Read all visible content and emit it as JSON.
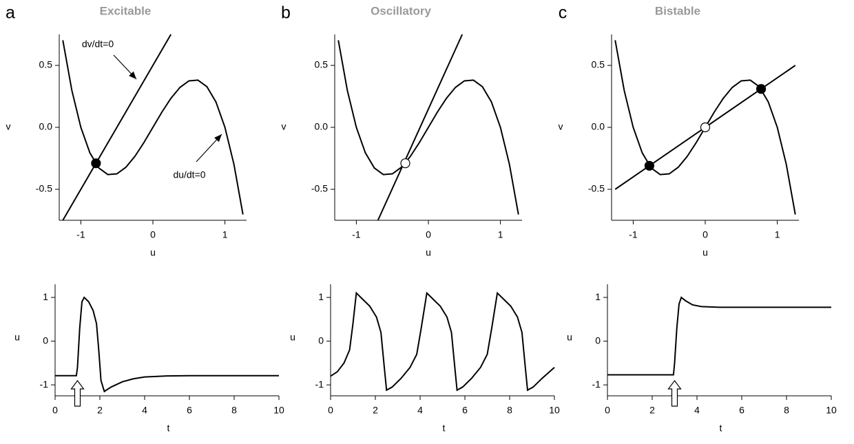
{
  "chart_data": [
    {
      "type": "line",
      "label": "a",
      "title": "Excitable",
      "xlabel": "u",
      "ylabel": "v",
      "xlim": [
        -1.3,
        1.3
      ],
      "ylim": [
        -0.75,
        0.75
      ],
      "xticks": [
        -1,
        0,
        1
      ],
      "yticks": [
        -0.5,
        {
          "value": 0,
          "label": "0.0"
        },
        0.5
      ],
      "series": [
        {
          "color": "#000",
          "x": [
            -1.25,
            -1.125,
            -1,
            -0.875,
            -0.75,
            -0.625,
            -0.5,
            -0.375,
            -0.25,
            -0.125,
            0,
            0.125,
            0.25,
            0.375,
            0.5,
            0.625,
            0.75,
            0.875,
            1,
            1.125,
            1.25
          ],
          "values": [
            0.703,
            0.299,
            0,
            -0.205,
            -0.328,
            -0.381,
            -0.375,
            -0.322,
            -0.234,
            -0.123,
            0,
            0.123,
            0.234,
            0.322,
            0.375,
            0.381,
            0.328,
            0.205,
            0,
            -0.299,
            -0.703
          ]
        },
        {
          "color": "#000",
          "x": [
            -1.25,
            0.25
          ],
          "values": [
            -0.75,
            0.75
          ]
        },
        {
          "type": "scatter",
          "color": "#000",
          "x": [
            -0.79
          ],
          "values": [
            -0.29
          ]
        }
      ],
      "annotations": [
        "dv/dt=0",
        "du/dt=0"
      ]
    },
    {
      "type": "line",
      "xlabel": "t",
      "ylabel": "u",
      "xlim": [
        0,
        10
      ],
      "ylim": [
        -1.25,
        1.3
      ],
      "xticks": [
        0,
        2,
        4,
        6,
        8,
        10
      ],
      "yticks": [
        -1,
        0,
        1
      ],
      "stimulus_time": 1,
      "series": [
        {
          "color": "#000",
          "x": [
            0,
            0.95,
            1,
            1.1,
            1.2,
            1.3,
            1.5,
            1.7,
            1.85,
            1.95,
            2.05,
            2.2,
            2.5,
            3,
            3.5,
            4,
            5,
            6,
            8,
            10
          ],
          "values": [
            -0.79,
            -0.79,
            -0.6,
            0.3,
            0.9,
            1,
            0.9,
            0.7,
            0.4,
            -0.2,
            -0.9,
            -1.15,
            -1.05,
            -0.93,
            -0.86,
            -0.82,
            -0.795,
            -0.79,
            -0.79,
            -0.79
          ]
        }
      ]
    },
    {
      "type": "line",
      "label": "b",
      "title": "Oscillatory",
      "xlabel": "u",
      "ylabel": "v",
      "xlim": [
        -1.3,
        1.3
      ],
      "ylim": [
        -0.75,
        0.75
      ],
      "xticks": [
        -1,
        0,
        1
      ],
      "yticks": [
        -0.5,
        {
          "value": 0,
          "label": "0.0"
        },
        0.5
      ],
      "series": [
        {
          "color": "#000",
          "x": [
            -1.25,
            -1.125,
            -1,
            -0.875,
            -0.75,
            -0.625,
            -0.5,
            -0.375,
            -0.25,
            -0.125,
            0,
            0.125,
            0.25,
            0.375,
            0.5,
            0.625,
            0.75,
            0.875,
            1,
            1.125,
            1.25
          ],
          "values": [
            0.703,
            0.299,
            0,
            -0.205,
            -0.328,
            -0.381,
            -0.375,
            -0.322,
            -0.234,
            -0.123,
            0,
            0.123,
            0.234,
            0.322,
            0.375,
            0.381,
            0.328,
            0.205,
            0,
            -0.299,
            -0.703
          ]
        },
        {
          "color": "#000",
          "x": [
            -0.7,
            0.47
          ],
          "values": [
            -0.75,
            0.75
          ]
        },
        {
          "type": "scatter",
          "color": "#fff",
          "x": [
            -0.32
          ],
          "values": [
            -0.29
          ]
        }
      ]
    },
    {
      "type": "line",
      "xlabel": "t",
      "ylabel": "u",
      "xlim": [
        0,
        10
      ],
      "ylim": [
        -1.25,
        1.3
      ],
      "xticks": [
        0,
        2,
        4,
        6,
        8,
        10
      ],
      "yticks": [
        -1,
        0,
        1
      ],
      "series": [
        {
          "color": "#000",
          "x": [
            0,
            0.3,
            0.6,
            0.85,
            1,
            1.15,
            1.45,
            1.75,
            2.05,
            2.25,
            2.4,
            2.5,
            2.75,
            3.15,
            3.55,
            3.85,
            4.05,
            4.3,
            4.6,
            4.9,
            5.2,
            5.4,
            5.55,
            5.65,
            5.9,
            6.3,
            6.7,
            7,
            7.2,
            7.45,
            7.75,
            8.05,
            8.35,
            8.55,
            8.7,
            8.8,
            9.05,
            9.45,
            10
          ],
          "values": [
            -0.8,
            -0.7,
            -0.5,
            -0.2,
            0.4,
            1.1,
            0.95,
            0.8,
            0.55,
            0.2,
            -0.6,
            -1.12,
            -1.05,
            -0.85,
            -0.6,
            -0.3,
            0.3,
            1.1,
            0.95,
            0.8,
            0.55,
            0.2,
            -0.6,
            -1.12,
            -1.05,
            -0.85,
            -0.6,
            -0.3,
            0.3,
            1.1,
            0.95,
            0.8,
            0.55,
            0.2,
            -0.6,
            -1.12,
            -1.05,
            -0.85,
            -0.6
          ]
        }
      ]
    },
    {
      "type": "line",
      "label": "c",
      "title": "Bistable",
      "xlabel": "u",
      "ylabel": "v",
      "xlim": [
        -1.3,
        1.3
      ],
      "ylim": [
        -0.75,
        0.75
      ],
      "xticks": [
        -1,
        0,
        1
      ],
      "yticks": [
        -0.5,
        {
          "value": 0,
          "label": "0.0"
        },
        0.5
      ],
      "series": [
        {
          "color": "#000",
          "x": [
            -1.25,
            -1.125,
            -1,
            -0.875,
            -0.75,
            -0.625,
            -0.5,
            -0.375,
            -0.25,
            -0.125,
            0,
            0.125,
            0.25,
            0.375,
            0.5,
            0.625,
            0.75,
            0.875,
            1,
            1.125,
            1.25
          ],
          "values": [
            0.703,
            0.299,
            0,
            -0.205,
            -0.328,
            -0.381,
            -0.375,
            -0.322,
            -0.234,
            -0.123,
            0,
            0.123,
            0.234,
            0.322,
            0.375,
            0.381,
            0.328,
            0.205,
            0,
            -0.299,
            -0.703
          ]
        },
        {
          "color": "#000",
          "x": [
            -1.25,
            1.25
          ],
          "values": [
            -0.5,
            0.5
          ]
        },
        {
          "type": "scatter",
          "color": "#000",
          "x": [
            -0.775,
            0.775
          ],
          "values": [
            -0.31,
            0.31
          ]
        },
        {
          "type": "scatter",
          "color": "#fff",
          "x": [
            0
          ],
          "values": [
            0
          ]
        }
      ]
    },
    {
      "type": "line",
      "xlabel": "t",
      "ylabel": "u",
      "xlim": [
        0,
        10
      ],
      "ylim": [
        -1.25,
        1.3
      ],
      "xticks": [
        0,
        2,
        4,
        6,
        8,
        10
      ],
      "yticks": [
        -1,
        0,
        1
      ],
      "stimulus_time": 3,
      "series": [
        {
          "color": "#000",
          "x": [
            0,
            2.95,
            3,
            3.1,
            3.2,
            3.3,
            3.5,
            3.8,
            4.2,
            5,
            10
          ],
          "values": [
            -0.77,
            -0.77,
            -0.5,
            0.3,
            0.85,
            1,
            0.92,
            0.83,
            0.79,
            0.775,
            0.775
          ]
        }
      ]
    }
  ]
}
